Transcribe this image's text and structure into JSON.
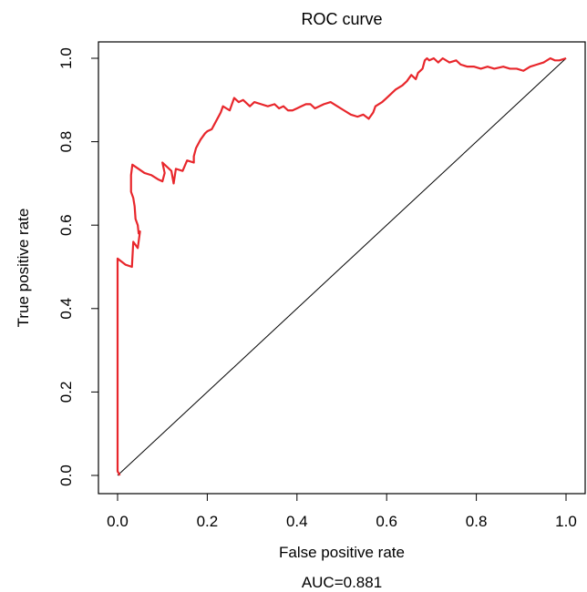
{
  "chart_data": {
    "type": "line",
    "title": "ROC curve",
    "xlabel": "False positive rate",
    "ylabel": "True positive rate",
    "annotation": "AUC=0.881",
    "xlim": [
      0,
      1
    ],
    "ylim": [
      0,
      1
    ],
    "x_ticks": [
      "0.0",
      "0.2",
      "0.4",
      "0.6",
      "0.8",
      "1.0"
    ],
    "y_ticks": [
      "0.0",
      "0.2",
      "0.4",
      "0.6",
      "0.8",
      "1.0"
    ],
    "grid": false,
    "legend": "none",
    "series": [
      {
        "color": "#e8262b",
        "points": [
          [
            0.005,
            0.0
          ],
          [
            0.0,
            0.01
          ],
          [
            0.0,
            0.52
          ],
          [
            0.018,
            0.505
          ],
          [
            0.032,
            0.5
          ],
          [
            0.035,
            0.56
          ],
          [
            0.045,
            0.545
          ],
          [
            0.05,
            0.585
          ],
          [
            0.047,
            0.58
          ],
          [
            0.045,
            0.6
          ],
          [
            0.04,
            0.615
          ],
          [
            0.038,
            0.645
          ],
          [
            0.035,
            0.665
          ],
          [
            0.03,
            0.68
          ],
          [
            0.03,
            0.72
          ],
          [
            0.033,
            0.745
          ],
          [
            0.06,
            0.725
          ],
          [
            0.075,
            0.72
          ],
          [
            0.09,
            0.71
          ],
          [
            0.1,
            0.705
          ],
          [
            0.105,
            0.725
          ],
          [
            0.1,
            0.75
          ],
          [
            0.12,
            0.73
          ],
          [
            0.125,
            0.7
          ],
          [
            0.13,
            0.735
          ],
          [
            0.145,
            0.73
          ],
          [
            0.155,
            0.755
          ],
          [
            0.17,
            0.75
          ],
          [
            0.17,
            0.765
          ],
          [
            0.175,
            0.785
          ],
          [
            0.18,
            0.795
          ],
          [
            0.185,
            0.805
          ],
          [
            0.195,
            0.82
          ],
          [
            0.2,
            0.825
          ],
          [
            0.21,
            0.83
          ],
          [
            0.22,
            0.85
          ],
          [
            0.23,
            0.87
          ],
          [
            0.235,
            0.885
          ],
          [
            0.25,
            0.875
          ],
          [
            0.26,
            0.905
          ],
          [
            0.27,
            0.895
          ],
          [
            0.28,
            0.9
          ],
          [
            0.285,
            0.895
          ],
          [
            0.295,
            0.885
          ],
          [
            0.305,
            0.895
          ],
          [
            0.32,
            0.89
          ],
          [
            0.335,
            0.885
          ],
          [
            0.35,
            0.89
          ],
          [
            0.36,
            0.88
          ],
          [
            0.37,
            0.885
          ],
          [
            0.38,
            0.875
          ],
          [
            0.39,
            0.875
          ],
          [
            0.4,
            0.88
          ],
          [
            0.41,
            0.885
          ],
          [
            0.42,
            0.89
          ],
          [
            0.43,
            0.89
          ],
          [
            0.44,
            0.88
          ],
          [
            0.46,
            0.89
          ],
          [
            0.475,
            0.895
          ],
          [
            0.49,
            0.885
          ],
          [
            0.505,
            0.875
          ],
          [
            0.52,
            0.865
          ],
          [
            0.535,
            0.86
          ],
          [
            0.548,
            0.865
          ],
          [
            0.56,
            0.855
          ],
          [
            0.57,
            0.87
          ],
          [
            0.575,
            0.885
          ],
          [
            0.59,
            0.895
          ],
          [
            0.6,
            0.905
          ],
          [
            0.61,
            0.915
          ],
          [
            0.62,
            0.925
          ],
          [
            0.635,
            0.935
          ],
          [
            0.645,
            0.945
          ],
          [
            0.655,
            0.96
          ],
          [
            0.665,
            0.95
          ],
          [
            0.67,
            0.965
          ],
          [
            0.68,
            0.975
          ],
          [
            0.685,
            0.995
          ],
          [
            0.69,
            1.0
          ],
          [
            0.695,
            0.995
          ],
          [
            0.705,
            1.0
          ],
          [
            0.715,
            0.99
          ],
          [
            0.725,
            1.0
          ],
          [
            0.74,
            0.99
          ],
          [
            0.755,
            0.995
          ],
          [
            0.765,
            0.985
          ],
          [
            0.78,
            0.98
          ],
          [
            0.795,
            0.98
          ],
          [
            0.81,
            0.975
          ],
          [
            0.825,
            0.98
          ],
          [
            0.84,
            0.975
          ],
          [
            0.86,
            0.98
          ],
          [
            0.875,
            0.975
          ],
          [
            0.89,
            0.975
          ],
          [
            0.905,
            0.97
          ],
          [
            0.92,
            0.98
          ],
          [
            0.935,
            0.985
          ],
          [
            0.95,
            0.99
          ],
          [
            0.965,
            1.0
          ],
          [
            0.975,
            0.995
          ],
          [
            0.985,
            0.995
          ],
          [
            1.0,
            1.0
          ]
        ]
      }
    ],
    "reference_line": {
      "from": [
        0,
        0
      ],
      "to": [
        1,
        1
      ],
      "color": "#000000"
    },
    "frame_color": "#000000"
  }
}
